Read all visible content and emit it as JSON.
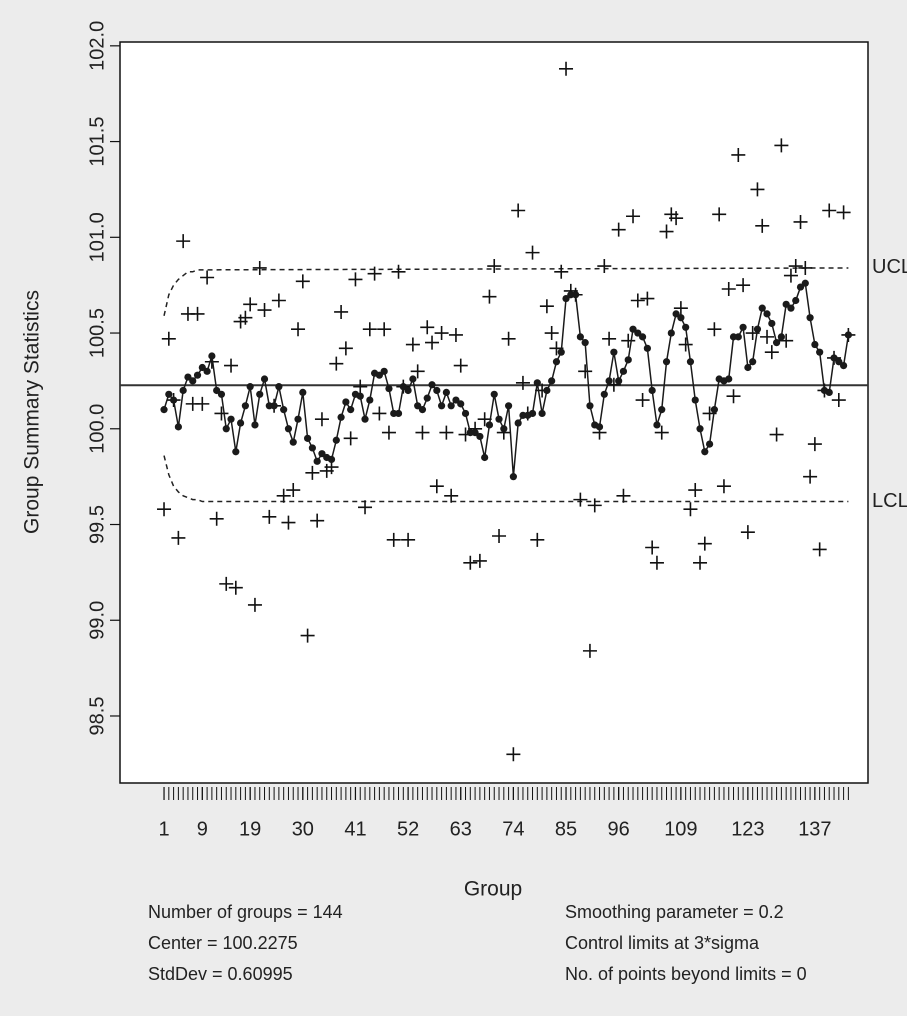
{
  "chart_data": {
    "type": "ewma",
    "y_label": "Group Summary Statistics",
    "x_label": "Group",
    "x": [
      1,
      2,
      3,
      4,
      5,
      6,
      7,
      8,
      9,
      10,
      11,
      12,
      13,
      14,
      15,
      16,
      17,
      18,
      19,
      20,
      21,
      22,
      23,
      24,
      25,
      26,
      27,
      28,
      29,
      30,
      31,
      32,
      33,
      34,
      35,
      36,
      37,
      38,
      39,
      40,
      41,
      42,
      43,
      44,
      45,
      46,
      47,
      48,
      49,
      50,
      51,
      52,
      53,
      54,
      55,
      56,
      57,
      58,
      59,
      60,
      61,
      62,
      63,
      64,
      65,
      66,
      67,
      68,
      69,
      70,
      71,
      72,
      73,
      74,
      75,
      76,
      77,
      78,
      79,
      80,
      81,
      82,
      83,
      84,
      85,
      86,
      87,
      88,
      89,
      90,
      91,
      92,
      93,
      94,
      95,
      96,
      97,
      98,
      99,
      100,
      101,
      102,
      103,
      104,
      105,
      106,
      107,
      108,
      109,
      110,
      111,
      112,
      113,
      114,
      115,
      116,
      117,
      118,
      119,
      120,
      121,
      122,
      123,
      124,
      125,
      126,
      127,
      128,
      129,
      130,
      131,
      132,
      133,
      134,
      135,
      136,
      137,
      138,
      139,
      140,
      141,
      142,
      143,
      144
    ],
    "series": [
      {
        "marker": "plus",
        "color": "#111111",
        "values": [
          99.58,
          100.47,
          100.15,
          99.43,
          100.98,
          100.6,
          100.13,
          100.6,
          100.13,
          100.79,
          100.35,
          99.53,
          100.08,
          99.19,
          100.33,
          99.17,
          100.56,
          100.58,
          100.65,
          99.08,
          100.84,
          100.62,
          99.54,
          100.12,
          100.67,
          99.65,
          99.51,
          99.68,
          100.52,
          100.77,
          98.92,
          99.77,
          99.52,
          100.05,
          99.78,
          99.8,
          100.34,
          100.61,
          100.42,
          99.95,
          100.78,
          100.22,
          99.59,
          100.52,
          100.81,
          100.08,
          100.52,
          99.98,
          99.42,
          100.82,
          100.22,
          99.42,
          100.44,
          100.3,
          99.98,
          100.53,
          100.45,
          99.7,
          100.5,
          99.98,
          99.65,
          100.49,
          100.33,
          99.97,
          99.3,
          100.0,
          99.31,
          100.05,
          100.69,
          100.85,
          99.44,
          99.98,
          100.47,
          98.3,
          101.14,
          100.24,
          100.08,
          100.92,
          99.42,
          100.2,
          100.64,
          100.5,
          100.42,
          100.82,
          101.88,
          100.72,
          100.7,
          99.63,
          100.3,
          98.84,
          99.6,
          99.98,
          100.85,
          100.47,
          100.23,
          101.04,
          99.65,
          100.46,
          101.11,
          100.67,
          100.15,
          100.68,
          99.38,
          99.3,
          99.98,
          101.03,
          101.12,
          101.1,
          100.63,
          100.44,
          99.58,
          99.68,
          99.3,
          99.4,
          100.08,
          100.52,
          101.12,
          99.7,
          100.73,
          100.17,
          101.43,
          100.75,
          99.46,
          100.5,
          101.25,
          101.06,
          100.48,
          100.4,
          99.97,
          101.48,
          100.46,
          100.8,
          100.85,
          101.08,
          100.84,
          99.75,
          99.92,
          99.37,
          100.2,
          101.14,
          100.37,
          100.15,
          101.13,
          100.49
        ]
      },
      {
        "marker": "dot",
        "color": "#1a1a1a",
        "line": true,
        "values": [
          100.1,
          100.18,
          100.15,
          100.01,
          100.2,
          100.27,
          100.25,
          100.28,
          100.32,
          100.3,
          100.38,
          100.2,
          100.18,
          100.0,
          100.05,
          99.88,
          100.03,
          100.12,
          100.22,
          100.02,
          100.18,
          100.26,
          100.12,
          100.12,
          100.22,
          100.1,
          100.0,
          99.93,
          100.05,
          100.19,
          99.95,
          99.9,
          99.83,
          99.87,
          99.85,
          99.84,
          99.94,
          100.06,
          100.14,
          100.1,
          100.18,
          100.17,
          100.05,
          100.15,
          100.29,
          100.28,
          100.3,
          100.21,
          100.08,
          100.08,
          100.22,
          100.2,
          100.26,
          100.12,
          100.1,
          100.16,
          100.23,
          100.2,
          100.12,
          100.19,
          100.12,
          100.15,
          100.13,
          100.08,
          99.98,
          99.98,
          99.96,
          99.85,
          100.02,
          100.18,
          100.05,
          100.0,
          100.12,
          99.75,
          100.03,
          100.07,
          100.07,
          100.08,
          100.24,
          100.08,
          100.2,
          100.25,
          100.35,
          100.4,
          100.68,
          100.7,
          100.7,
          100.48,
          100.45,
          100.12,
          100.02,
          100.01,
          100.18,
          100.25,
          100.4,
          100.25,
          100.3,
          100.36,
          100.52,
          100.5,
          100.48,
          100.42,
          100.2,
          100.02,
          100.1,
          100.35,
          100.5,
          100.6,
          100.58,
          100.53,
          100.35,
          100.15,
          100.0,
          99.88,
          99.92,
          100.1,
          100.26,
          100.25,
          100.26,
          100.48,
          100.48,
          100.53,
          100.32,
          100.35,
          100.52,
          100.63,
          100.6,
          100.55,
          100.45,
          100.48,
          100.65,
          100.63,
          100.67,
          100.74,
          100.76,
          100.58,
          100.44,
          100.4,
          100.2,
          100.19,
          100.37,
          100.35,
          100.33,
          100.49
        ]
      }
    ],
    "center_line": 100.2275,
    "limits": {
      "x": [
        1,
        2,
        3,
        4,
        5,
        6,
        7,
        8,
        9,
        10,
        144
      ],
      "upper": [
        100.59,
        100.7,
        100.75,
        100.78,
        100.8,
        100.82,
        100.82,
        100.83,
        100.83,
        100.83,
        100.84
      ],
      "lower": [
        99.86,
        99.76,
        99.7,
        99.67,
        99.65,
        99.64,
        99.63,
        99.63,
        99.62,
        99.62,
        99.62
      ],
      "labels": [
        "UCL",
        "LCL"
      ]
    },
    "xlim": [
      -8.2,
      148.1
    ],
    "xticks": [
      1,
      9,
      19,
      30,
      41,
      52,
      63,
      74,
      85,
      96,
      109,
      123,
      137
    ],
    "ylim": [
      98.15,
      102.02
    ],
    "yticks": [
      98.5,
      {
        "value": 99,
        "label": "99.0"
      },
      99.5,
      {
        "value": 100,
        "label": "100.0"
      },
      100.5,
      {
        "value": 101,
        "label": "101.0"
      },
      101.5,
      {
        "value": 102,
        "label": "102.0"
      }
    ],
    "stats_left": [
      "Number of groups = 144",
      "Center = 100.2275",
      "StdDev = 0.60995"
    ],
    "stats_right": [
      "Smoothing parameter =  0.2",
      "Control limits at 3*sigma",
      "No. of points beyond limits = 0"
    ]
  }
}
